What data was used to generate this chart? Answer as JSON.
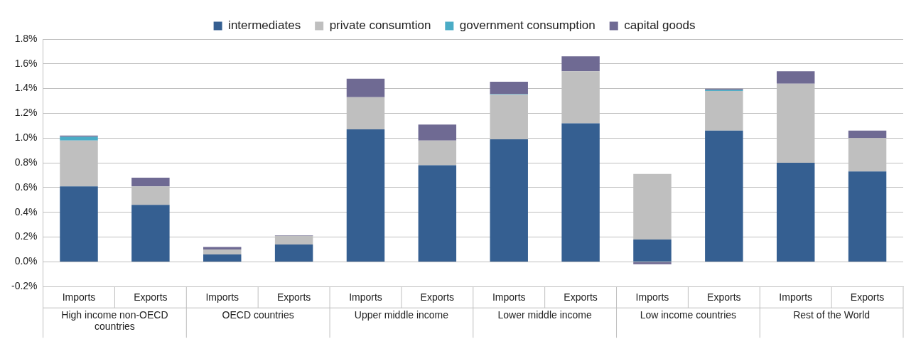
{
  "chart_data": {
    "type": "bar",
    "stacked": true,
    "categories": [
      "Imports",
      "Exports",
      "Imports",
      "Exports",
      "Imports",
      "Exports",
      "Imports",
      "Exports",
      "Imports",
      "Exports",
      "Imports",
      "Exports"
    ],
    "annotations": [
      "High income non-OECD countries",
      "OECD countries",
      "Upper middle income",
      "Lower middle income",
      "Low income countries",
      "Rest of the World"
    ],
    "series": [
      {
        "name": "intermediates",
        "color": "#355f91",
        "values": [
          0.61,
          0.46,
          0.06,
          0.14,
          1.07,
          0.78,
          0.99,
          1.12,
          0.18,
          1.06,
          0.8,
          0.73
        ]
      },
      {
        "name": "private consumtion",
        "color": "#bfbfbf",
        "values": [
          0.37,
          0.15,
          0.04,
          0.07,
          0.26,
          0.2,
          0.36,
          0.42,
          0.53,
          0.32,
          0.64,
          0.27
        ]
      },
      {
        "name": "government consumption",
        "color": "#4bacc6",
        "values": [
          0.03,
          0,
          0,
          0,
          0,
          0,
          0.005,
          0,
          0,
          0.01,
          0,
          0
        ]
      },
      {
        "name": "capital goods",
        "color": "#6f6a93",
        "values": [
          0.01,
          0.07,
          0.02,
          0.005,
          0.15,
          0.13,
          0.1,
          0.12,
          -0.02,
          0.01,
          0.1,
          0.06
        ]
      }
    ],
    "ylim": [
      -0.2,
      1.8
    ],
    "yticks": [
      {
        "value": -0.2,
        "label": "-0.2%"
      },
      {
        "value": 0,
        "label": "0.0%"
      },
      {
        "value": 0.2,
        "label": "0.2%"
      },
      {
        "value": 0.4,
        "label": "0.4%"
      },
      {
        "value": 0.6,
        "label": "0.6%"
      },
      {
        "value": 0.8,
        "label": "0.8%"
      },
      {
        "value": 1,
        "label": "1.0%"
      },
      {
        "value": 1.2,
        "label": "1.2%"
      },
      {
        "value": 1.4,
        "label": "1.4%"
      },
      {
        "value": 1.6,
        "label": "1.6%"
      },
      {
        "value": 1.8,
        "label": "1.8%"
      }
    ],
    "grid": "y",
    "legend": "top"
  }
}
